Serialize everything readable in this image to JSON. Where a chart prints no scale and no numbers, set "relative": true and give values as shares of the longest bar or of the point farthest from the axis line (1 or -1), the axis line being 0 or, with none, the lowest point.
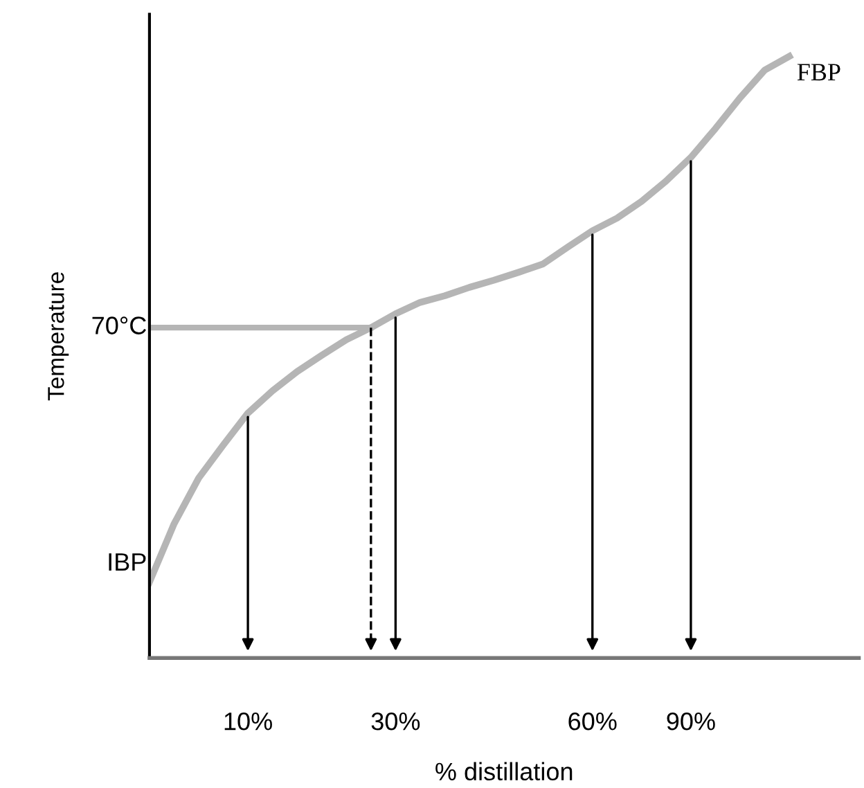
{
  "chart_data": {
    "type": "line",
    "relative": true,
    "xlabel": "% distillation",
    "ylabel": "Temperature",
    "categories": [
      null,
      null,
      null,
      null,
      "10%",
      null,
      null,
      null,
      null,
      null,
      "30%",
      null,
      null,
      null,
      null,
      null,
      null,
      null,
      "60%",
      null,
      null,
      null,
      "90%",
      null,
      null,
      null,
      null
    ],
    "series": [
      {
        "color": "#b5b5b5",
        "values": [
          0.126,
          0.223,
          0.299,
          0.354,
          0.407,
          0.444,
          0.476,
          0.503,
          0.529,
          0.549,
          0.572,
          0.591,
          0.602,
          0.616,
          0.628,
          0.641,
          0.655,
          0.683,
          0.71,
          0.731,
          0.759,
          0.793,
          0.832,
          0.88,
          0.931,
          0.977,
          1.0
        ]
      }
    ],
    "ref_lines": [
      {
        "axis": "y",
        "value": 0.549,
        "label": "70°C",
        "color": "#b5b5b5",
        "line_style": "solid"
      }
    ],
    "annotations": [
      "IBP",
      "FBP"
    ],
    "grid": "x",
    "legend": false,
    "marker": "none",
    "line_style": "solid"
  }
}
